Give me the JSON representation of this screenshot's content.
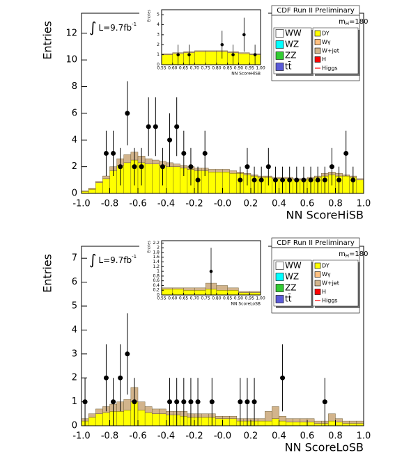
{
  "chart_data": [
    {
      "type": "histogram",
      "title": "CDF Run II Preliminary",
      "mass_label": [
        "m",
        "H",
        "=180"
      ],
      "lumi_label": [
        "∫",
        "L=9.7fb",
        "-1"
      ],
      "xlabel": "NN ScoreHiSB",
      "ylabel": "Entries",
      "xlim": [
        -1,
        1
      ],
      "ylim": [
        0,
        13.5
      ],
      "xticks": [
        {
          "value": -1,
          "label": "-1.0"
        },
        -0.8,
        -0.6,
        -0.4,
        -0.2,
        {
          "value": 0,
          "label": "-0.0"
        },
        0.2,
        0.4,
        0.6,
        0.8,
        {
          "value": 1,
          "label": "1.0"
        }
      ],
      "yticks": [
        0,
        2,
        4,
        6,
        8,
        10,
        12
      ],
      "bins": [
        -1,
        -0.95,
        -0.9,
        -0.85,
        -0.8,
        -0.75,
        -0.7,
        -0.65,
        -0.6,
        -0.55,
        -0.5,
        -0.45,
        -0.4,
        -0.35,
        -0.3,
        -0.25,
        -0.2,
        -0.15,
        -0.1,
        -0.05,
        0,
        0.05,
        0.1,
        0.15,
        0.2,
        0.25,
        0.3,
        0.35,
        0.4,
        0.45,
        0.5,
        0.55,
        0.6,
        0.65,
        0.7,
        0.75,
        0.8,
        0.85,
        0.9,
        0.95,
        1
      ],
      "series": [
        {
          "name": "WW",
          "color": "#ffffff"
        },
        {
          "name": "WZ",
          "color": "#00ffff"
        },
        {
          "name": "ZZ",
          "color": "#33cc33"
        },
        {
          "name": "tt̄",
          "color": "#5a5ad8"
        },
        {
          "name": "DY",
          "color": "#ffff00",
          "values": [
            0.15,
            0.3,
            0.8,
            1.1,
            1.7,
            2.1,
            2.3,
            2.5,
            2.3,
            2.2,
            2.2,
            2.1,
            2.0,
            2.0,
            1.9,
            1.8,
            1.7,
            1.7,
            1.6,
            1.6,
            1.6,
            1.5,
            1.5,
            1.4,
            1.3,
            1.2,
            1.2,
            1.1,
            1.1,
            1.1,
            1.0,
            1.0,
            1.1,
            1.2,
            1.3,
            1.4,
            1.3,
            1.3,
            1.2,
            1.0
          ]
        },
        {
          "name": "Wγ",
          "color": "#ffc080"
        },
        {
          "name": "W+jet",
          "color": "#d2b48c",
          "values": [
            0.05,
            0.1,
            0.1,
            0.2,
            0.3,
            0.5,
            0.6,
            0.6,
            0.5,
            0.4,
            0.3,
            0.3,
            0.3,
            0.2,
            0.2,
            0.2,
            0.2,
            0.2,
            0.2,
            0.2,
            0.2,
            0.2,
            0.1,
            0.1,
            0.1,
            0.1,
            0.1,
            0.1,
            0.1,
            0.1,
            0.1,
            0.1,
            0.1,
            0.1,
            0.2,
            0.2,
            0.2,
            0.1,
            0.1,
            0.1
          ]
        },
        {
          "name": "H",
          "color": "#ff0000"
        },
        {
          "name": "Higgs",
          "color": "#ff0000",
          "style": "line"
        }
      ],
      "data": {
        "values": [
          null,
          null,
          null,
          3,
          3,
          2,
          6,
          2,
          2,
          5,
          5,
          2,
          4,
          5,
          3,
          2,
          1,
          3,
          null,
          null,
          null,
          null,
          1,
          2,
          1,
          1,
          2,
          1,
          1,
          1,
          1,
          1,
          1,
          1,
          1,
          2,
          1,
          3,
          1,
          null
        ],
        "errors": [
          null,
          null,
          null,
          1.7,
          1.7,
          1.4,
          2.4,
          1.4,
          1.4,
          2.2,
          2.2,
          1.4,
          2,
          2.2,
          1.7,
          1.4,
          1,
          1.7,
          null,
          null,
          null,
          null,
          1,
          1.4,
          1,
          1,
          1.4,
          1,
          1,
          1,
          1,
          1,
          1,
          1,
          1,
          1.4,
          1,
          1.7,
          1,
          null
        ]
      },
      "inset": {
        "xlabel": "NN ScoreHiSB",
        "ylabel": "Entries",
        "xlim": [
          0.55,
          1
        ],
        "ylim": [
          0,
          5.5
        ],
        "xticks": [
          0.55,
          {
            "value": 0.6,
            "label": "0.60"
          },
          0.65,
          {
            "value": 0.7,
            "label": "0.70"
          },
          0.75,
          {
            "value": 0.8,
            "label": "0.80"
          },
          0.85,
          {
            "value": 0.9,
            "label": "0.90"
          },
          0.95,
          {
            "value": 1,
            "label": "1.00"
          }
        ],
        "yticks": [
          0,
          1,
          2,
          3,
          4,
          5
        ],
        "bins": [
          0.55,
          0.6,
          0.65,
          0.7,
          0.75,
          0.8,
          0.85,
          0.9,
          0.95,
          1
        ],
        "series": [
          {
            "color": "#ffff00",
            "values": [
              1.0,
              1.1,
              1.2,
              1.3,
              1.3,
              1.3,
              1.2,
              1.1,
              1.0
            ]
          },
          {
            "color": "#d2b48c",
            "values": [
              0.1,
              0.1,
              0.1,
              0.1,
              0.1,
              0.1,
              0.1,
              0.1,
              0.1
            ]
          }
        ],
        "data": {
          "values": [
            null,
            1,
            1,
            null,
            null,
            2,
            1,
            3,
            1
          ],
          "errors": [
            null,
            1,
            1,
            null,
            null,
            1.4,
            1,
            1.7,
            1
          ]
        }
      }
    },
    {
      "type": "histogram",
      "title": "CDF Run II Preliminary",
      "mass_label": [
        "m",
        "H",
        "=180"
      ],
      "lumi_label": [
        "∫",
        "L=9.7fb",
        "-1"
      ],
      "xlabel": "NN ScoreLoSB",
      "ylabel": "Entries",
      "xlim": [
        -1,
        1
      ],
      "ylim": [
        0,
        7.5
      ],
      "xticks": [
        {
          "value": -1,
          "label": "-1.0"
        },
        -0.8,
        -0.6,
        -0.4,
        -0.2,
        {
          "value": 0,
          "label": "-0.0"
        },
        0.2,
        0.4,
        0.6,
        0.8,
        {
          "value": 1,
          "label": "1.0"
        }
      ],
      "yticks": [
        0,
        1,
        2,
        3,
        4,
        5,
        6,
        7
      ],
      "bins": [
        -1,
        -0.95,
        -0.9,
        -0.85,
        -0.8,
        -0.75,
        -0.7,
        -0.65,
        -0.6,
        -0.55,
        -0.5,
        -0.45,
        -0.4,
        -0.35,
        -0.3,
        -0.25,
        -0.2,
        -0.15,
        -0.1,
        -0.05,
        0,
        0.05,
        0.1,
        0.15,
        0.2,
        0.25,
        0.3,
        0.35,
        0.4,
        0.45,
        0.5,
        0.55,
        0.6,
        0.65,
        0.7,
        0.75,
        0.8,
        0.85,
        0.9,
        0.95,
        1
      ],
      "series": [
        {
          "name": "WW",
          "color": "#ffffff"
        },
        {
          "name": "WZ",
          "color": "#00ffff"
        },
        {
          "name": "ZZ",
          "color": "#33cc33"
        },
        {
          "name": "tt̄",
          "color": "#5a5ad8"
        },
        {
          "name": "DY",
          "color": "#ffff00",
          "values": [
            0.2,
            0.35,
            0.5,
            0.55,
            0.6,
            0.6,
            0.65,
            1.0,
            0.65,
            0.55,
            0.5,
            0.5,
            0.45,
            0.45,
            0.4,
            0.35,
            0.35,
            0.35,
            0.35,
            0.3,
            0.3,
            0.3,
            0.2,
            0.2,
            0.2,
            0.2,
            0.2,
            0.3,
            0.2,
            0.15,
            0.15,
            0.15,
            0.15,
            0.1,
            0.1,
            0.2,
            0.15,
            0.1,
            0.1,
            0.1
          ]
        },
        {
          "name": "Wγ",
          "color": "#ffc080"
        },
        {
          "name": "W+jet",
          "color": "#d2b48c",
          "values": [
            0.1,
            0.15,
            0.2,
            0.25,
            0.3,
            0.4,
            0.45,
            0.6,
            0.35,
            0.25,
            0.2,
            0.2,
            0.15,
            0.15,
            0.2,
            0.15,
            0.15,
            0.15,
            0.15,
            0.1,
            0.1,
            0.1,
            0.1,
            0.1,
            0.1,
            0.1,
            0.4,
            0.5,
            0.2,
            0.15,
            0.15,
            0.15,
            0.15,
            0.1,
            0.1,
            0.3,
            0.15,
            0.1,
            0.1,
            0.1
          ]
        },
        {
          "name": "H",
          "color": "#ff0000"
        },
        {
          "name": "Higgs",
          "color": "#ff0000",
          "style": "line"
        }
      ],
      "data": {
        "values": [
          1,
          null,
          null,
          2,
          1,
          2,
          3,
          1,
          null,
          null,
          null,
          null,
          1,
          1,
          1,
          1,
          1,
          null,
          1,
          null,
          null,
          null,
          1,
          1,
          1,
          null,
          null,
          null,
          2,
          null,
          null,
          null,
          null,
          null,
          1,
          null,
          null,
          null,
          null,
          null
        ],
        "errors": [
          1,
          null,
          null,
          1.4,
          1,
          1.4,
          1.7,
          1,
          null,
          null,
          null,
          null,
          1,
          1,
          1,
          1,
          1,
          null,
          1,
          null,
          null,
          null,
          1,
          1,
          1,
          null,
          null,
          null,
          1.4,
          null,
          null,
          null,
          null,
          null,
          1,
          null,
          null,
          null,
          null,
          null
        ]
      },
      "inset": {
        "xlabel": "NN ScoreLoSB",
        "ylabel": "Entries",
        "xlim": [
          0.55,
          1
        ],
        "ylim": [
          0,
          2.3
        ],
        "xticks": [
          0.55,
          {
            "value": 0.6,
            "label": "0.60"
          },
          0.65,
          {
            "value": 0.7,
            "label": "0.70"
          },
          0.75,
          {
            "value": 0.8,
            "label": "0.80"
          },
          0.85,
          {
            "value": 0.9,
            "label": "0.90"
          },
          0.95,
          {
            "value": 1,
            "label": "1.00"
          }
        ],
        "yticks": [
          0,
          0.2,
          0.4,
          0.6,
          0.8,
          1,
          1.2,
          1.4,
          1.6,
          1.8,
          2,
          2.2
        ],
        "bins": [
          0.55,
          0.6,
          0.65,
          0.7,
          0.75,
          0.8,
          0.85,
          0.9,
          0.95,
          1
        ],
        "series": [
          {
            "color": "#ffff00",
            "values": [
              0.25,
              0.25,
              0.2,
              0.2,
              0.25,
              0.2,
              0.2,
              0.1,
              0.1
            ]
          },
          {
            "color": "#d2b48c",
            "values": [
              0.05,
              0.05,
              0.1,
              0.1,
              0.25,
              0.2,
              0.1,
              0.05,
              0.05
            ]
          }
        ],
        "data": {
          "values": [
            null,
            null,
            null,
            null,
            1,
            null,
            null,
            null,
            null
          ],
          "errors": [
            null,
            null,
            null,
            null,
            1,
            null,
            null,
            null,
            null
          ]
        }
      }
    }
  ]
}
